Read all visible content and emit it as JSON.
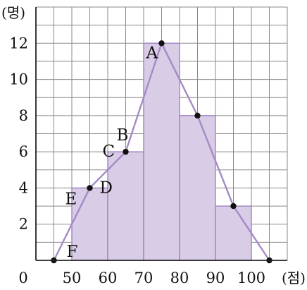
{
  "chart_data": {
    "type": "bar",
    "title": "",
    "ylabel": "(명)",
    "xlabel": "(점)",
    "origin_label": "0",
    "ylim": [
      0,
      14
    ],
    "xlim": [
      40,
      110
    ],
    "grid": true,
    "x_ticks": [
      "50",
      "60",
      "70",
      "80",
      "90",
      "100"
    ],
    "y_ticks": [
      "2",
      "4",
      "6",
      "8",
      "10",
      "12"
    ],
    "bins": [
      {
        "start": 50,
        "end": 60,
        "count": 4
      },
      {
        "start": 60,
        "end": 70,
        "count": 6
      },
      {
        "start": 70,
        "end": 80,
        "count": 12
      },
      {
        "start": 80,
        "end": 90,
        "count": 8
      },
      {
        "start": 90,
        "end": 100,
        "count": 3
      }
    ],
    "polygon": [
      {
        "x": 45,
        "y": 0
      },
      {
        "x": 55,
        "y": 4
      },
      {
        "x": 65,
        "y": 6
      },
      {
        "x": 75,
        "y": 12
      },
      {
        "x": 85,
        "y": 8
      },
      {
        "x": 95,
        "y": 3
      },
      {
        "x": 105,
        "y": 0
      }
    ],
    "point_labels": [
      {
        "label": "A",
        "x": 75,
        "y": 12
      },
      {
        "label": "B",
        "x": 65,
        "y": 6
      },
      {
        "label": "C",
        "x": 65,
        "y": 6
      },
      {
        "label": "D",
        "x": 55,
        "y": 4
      },
      {
        "label": "E",
        "x": 55,
        "y": 4
      },
      {
        "label": "F",
        "x": 45,
        "y": 0
      }
    ],
    "colors": {
      "bar_fill": "#d8cce6",
      "bar_stroke": "#a58ac6",
      "polygon": "#a58ac6",
      "grid": "#8a8a8a",
      "axis": "#222222",
      "point": "#111111"
    }
  }
}
